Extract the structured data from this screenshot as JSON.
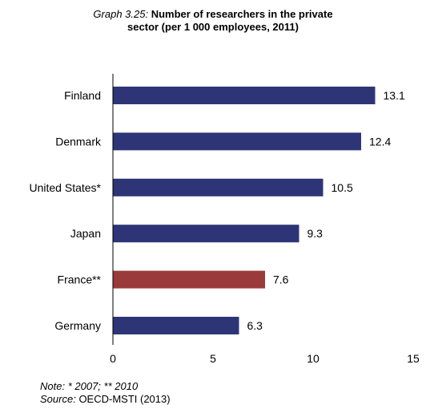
{
  "header": {
    "title_prefix": "Graph 3.25:",
    "title_line1": "Number of researchers in the private",
    "title_line2": "sector (per 1 000 employees, 2011)"
  },
  "chart_data": {
    "type": "bar",
    "orientation": "horizontal",
    "title": "Number of researchers in the private sector (per 1 000 employees, 2011)",
    "categories": [
      "Finland",
      "Denmark",
      "United States*",
      "Japan",
      "France**",
      "Germany"
    ],
    "values": [
      13.1,
      12.4,
      10.5,
      9.3,
      7.6,
      6.3
    ],
    "xlim": [
      0,
      15
    ],
    "xticks": [
      "0",
      "5",
      "10",
      "15"
    ],
    "xlabel": "",
    "ylabel": "",
    "grid": false,
    "legend": "none",
    "colors": {
      "default": "#2e3577",
      "highlight": "#9b3a3a"
    },
    "highlight_category": "France**"
  },
  "footer": {
    "note_label": "Note:",
    "note_text": "* 2007; ** 2010",
    "source_label": "Source:",
    "source_text": "OECD-MSTI (2013)"
  }
}
